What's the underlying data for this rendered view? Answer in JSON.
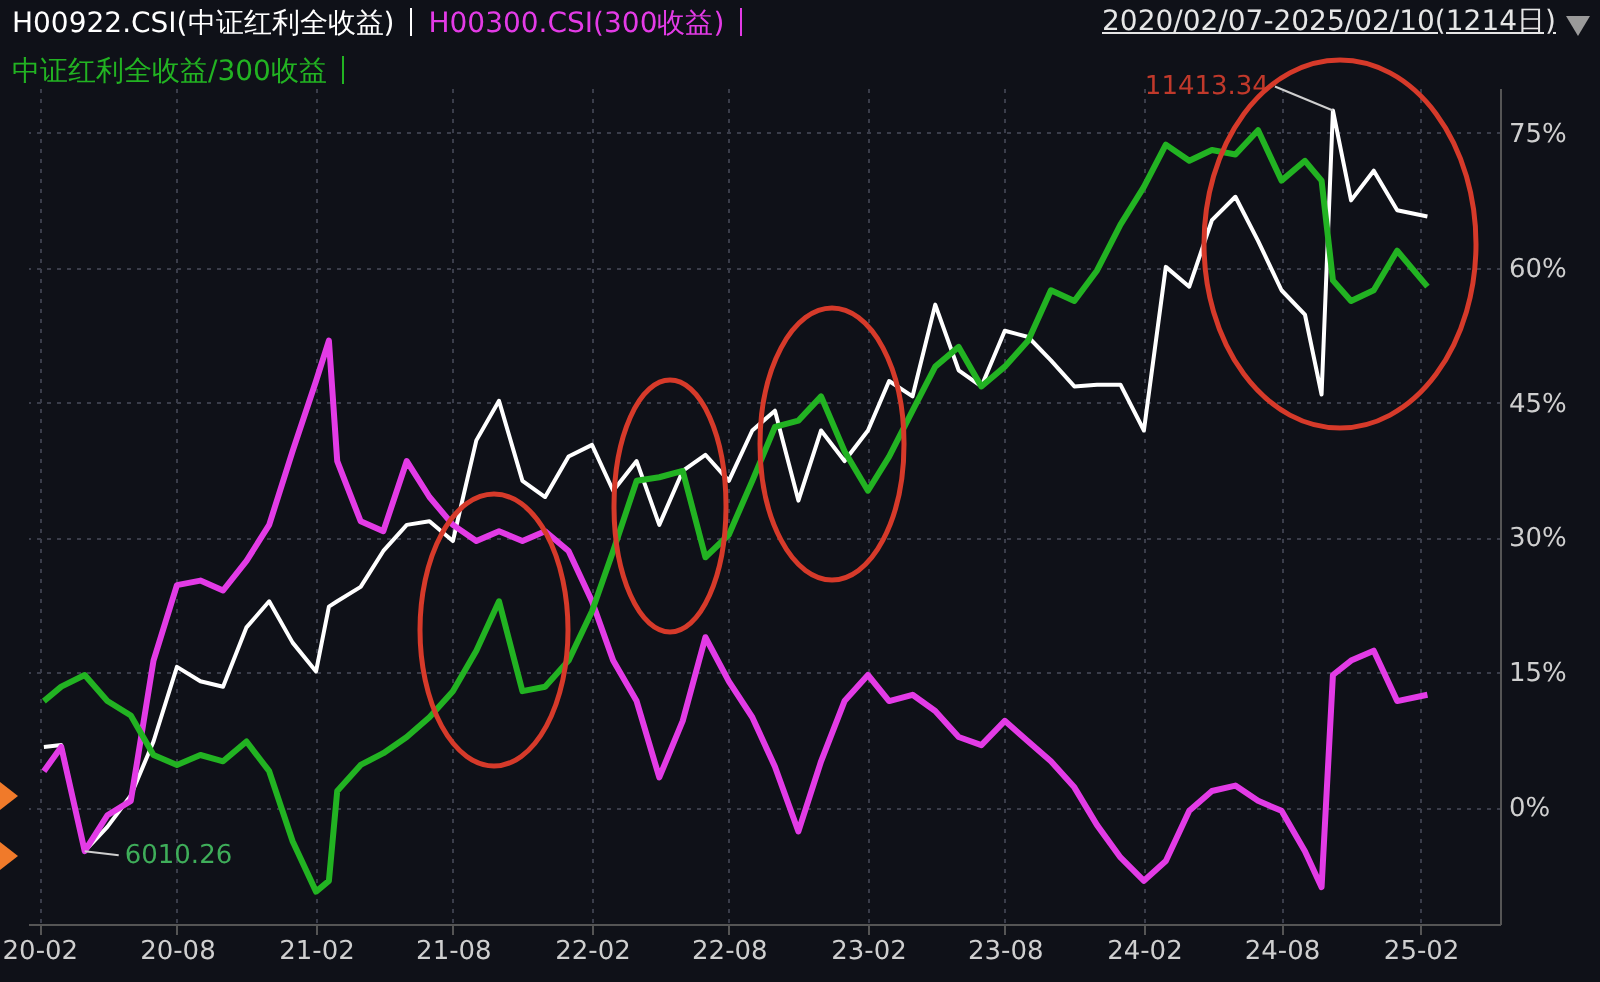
{
  "chart_data": {
    "type": "line",
    "title": "2020/02/07-2025/02/10(1214日)",
    "x": [
      "2020-02-07",
      "2020-03-01",
      "2020-04-01",
      "2020-05-01",
      "2020-06-01",
      "2020-07-01",
      "2020-08-01",
      "2020-09-01",
      "2020-10-01",
      "2020-11-01",
      "2020-12-01",
      "2021-01-01",
      "2021-02-01",
      "2021-02-18",
      "2021-03-01",
      "2021-04-01",
      "2021-05-01",
      "2021-06-01",
      "2021-07-01",
      "2021-08-01",
      "2021-09-01",
      "2021-10-01",
      "2021-11-01",
      "2021-12-01",
      "2022-01-01",
      "2022-02-01",
      "2022-03-01",
      "2022-04-01",
      "2022-05-01",
      "2022-06-01",
      "2022-07-01",
      "2022-08-01",
      "2022-09-01",
      "2022-10-01",
      "2022-11-01",
      "2022-12-01",
      "2023-01-01",
      "2023-02-01",
      "2023-03-01",
      "2023-04-01",
      "2023-05-01",
      "2023-06-01",
      "2023-07-01",
      "2023-08-01",
      "2023-09-01",
      "2023-10-01",
      "2023-11-01",
      "2023-12-01",
      "2024-01-01",
      "2024-02-01",
      "2024-03-01",
      "2024-04-01",
      "2024-05-01",
      "2024-06-01",
      "2024-07-01",
      "2024-08-01",
      "2024-09-01",
      "2024-09-23",
      "2024-10-08",
      "2024-11-01",
      "2024-12-01",
      "2025-01-01",
      "2025-02-10"
    ],
    "series": [
      {
        "name": "H00922.CSI(中证红利全收益)",
        "color": "#ffffff",
        "values": [
          6.7,
          6.9,
          -4.9,
          -2.2,
          1.3,
          7.3,
          15.6,
          14.0,
          13.4,
          20.0,
          22.9,
          18.3,
          15.1,
          22.3,
          22.9,
          24.5,
          28.5,
          31.4,
          31.8,
          29.6,
          40.8,
          45.2,
          36.3,
          34.5,
          39.0,
          40.3,
          35.2,
          38.5,
          31.4,
          37.4,
          39.2,
          36.3,
          41.9,
          44.1,
          34.1,
          41.9,
          38.5,
          41.9,
          47.4,
          45.7,
          55.9,
          48.6,
          46.8,
          53.0,
          52.3,
          49.7,
          46.8,
          47.0,
          47.0,
          41.9,
          60.1,
          57.9,
          65.3,
          67.9,
          63.0,
          57.5,
          54.8,
          45.9,
          77.5,
          67.5,
          70.8,
          66.4,
          65.7
        ]
      },
      {
        "name": "H00300.CSI(300收益)",
        "color": "#e33be6",
        "values": [
          4.0,
          6.7,
          -4.9,
          -0.9,
          0.7,
          16.3,
          24.7,
          25.2,
          24.1,
          27.4,
          31.4,
          39.6,
          47.4,
          51.9,
          38.5,
          31.8,
          30.7,
          38.5,
          34.5,
          31.4,
          29.6,
          30.7,
          29.6,
          30.7,
          28.5,
          22.9,
          16.3,
          11.8,
          3.3,
          9.6,
          18.9,
          14.0,
          10.0,
          4.5,
          -2.7,
          5.1,
          11.8,
          14.7,
          11.8,
          12.5,
          10.7,
          7.8,
          6.9,
          9.6,
          7.3,
          5.1,
          2.2,
          -2.0,
          -5.6,
          -8.2,
          -6.0,
          -0.4,
          1.8,
          2.4,
          0.7,
          -0.4,
          -4.9,
          -8.9,
          14.7,
          16.3,
          17.4,
          11.8,
          12.5
        ]
      },
      {
        "name": "中证红利全收益/300收益",
        "color": "#22b322",
        "values": [
          11.8,
          13.4,
          14.7,
          11.8,
          10.2,
          5.8,
          4.7,
          5.8,
          5.1,
          7.3,
          4.0,
          -3.8,
          -9.4,
          -8.2,
          1.8,
          4.7,
          6.0,
          7.8,
          10.0,
          12.9,
          17.4,
          22.9,
          12.9,
          13.4,
          16.3,
          21.8,
          28.5,
          36.3,
          36.7,
          37.4,
          27.8,
          30.3,
          36.3,
          42.3,
          43.0,
          45.7,
          39.6,
          35.2,
          39.0,
          44.1,
          49.0,
          51.2,
          46.8,
          49.0,
          51.9,
          57.5,
          56.3,
          59.7,
          64.8,
          69.0,
          73.7,
          71.9,
          73.1,
          72.6,
          75.3,
          69.7,
          71.9,
          69.7,
          58.6,
          56.3,
          57.5,
          61.9,
          57.9
        ]
      }
    ],
    "annotations": [
      {
        "text": "6010.26",
        "x": "2020-04-01",
        "y": -4.9
      },
      {
        "text": "11413.34",
        "x": "2024-10-08",
        "y": 77.5
      }
    ],
    "xlim": [
      "2020-01-17",
      "2025-05-17"
    ],
    "xticks": [
      {
        "value": "2020-02-01",
        "label": "20-02"
      },
      {
        "value": "2020-08-01",
        "label": "20-08"
      },
      {
        "value": "2021-02-01",
        "label": "21-02"
      },
      {
        "value": "2021-08-01",
        "label": "21-08"
      },
      {
        "value": "2022-02-01",
        "label": "22-02"
      },
      {
        "value": "2022-08-01",
        "label": "22-08"
      },
      {
        "value": "2023-02-01",
        "label": "23-02"
      },
      {
        "value": "2023-08-01",
        "label": "23-08"
      },
      {
        "value": "2024-02-01",
        "label": "24-02"
      },
      {
        "value": "2024-08-01",
        "label": "24-08"
      },
      {
        "value": "2025-02-01",
        "label": "25-02"
      }
    ],
    "ylim": [
      -13,
      80
    ],
    "yticks": [
      {
        "value": 0,
        "label": "0%"
      },
      {
        "value": 15,
        "label": "15%"
      },
      {
        "value": 30,
        "label": "30%"
      },
      {
        "value": 45,
        "label": "45%"
      },
      {
        "value": 60,
        "label": "60%"
      },
      {
        "value": 75,
        "label": "75%"
      }
    ],
    "grid": true,
    "legend": "top left"
  }
}
